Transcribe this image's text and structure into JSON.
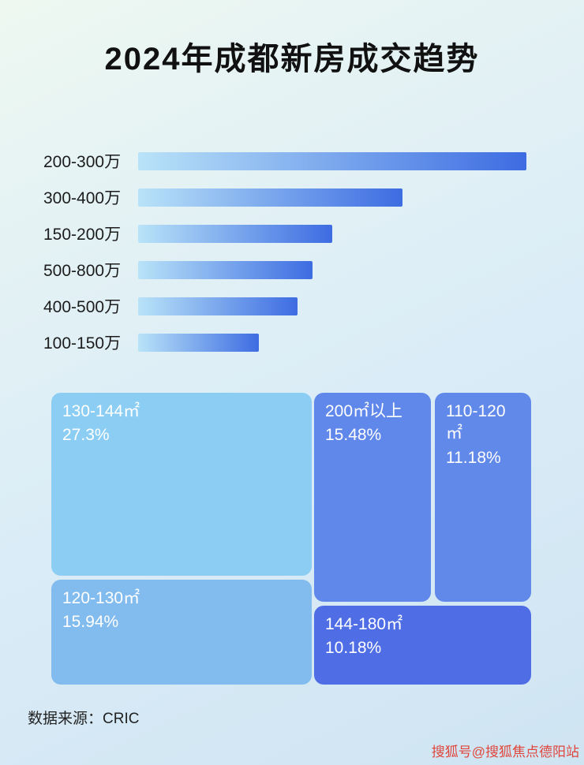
{
  "title": "2024年成都新房成交趋势",
  "footer": {
    "source_label": "数据来源：CRIC"
  },
  "watermark": "搜狐号@搜狐焦点德阳站",
  "colors": {
    "bar_gradient_start": "#b9e3f8",
    "bar_gradient_end": "#3d6ce2",
    "title_color": "#111111",
    "watermark_color": "#e0463c"
  },
  "chart_data": [
    {
      "type": "bar",
      "orientation": "horizontal",
      "title": "2024年成都新房成交趋势",
      "categories": [
        "200-300万",
        "300-400万",
        "150-200万",
        "500-800万",
        "400-500万",
        "100-150万"
      ],
      "values": [
        100,
        68,
        50,
        45,
        41,
        31
      ],
      "value_unit": "relative bar length, % of longest bar (no numeric axis shown)",
      "xlabel": "",
      "ylabel": "",
      "grid": false,
      "legend": false
    },
    {
      "type": "treemap",
      "title": "",
      "items": [
        {
          "label": "130-144㎡",
          "value": 27.3,
          "value_label": "27.3%",
          "color": "#8ccdf3"
        },
        {
          "label": "120-130㎡",
          "value": 15.94,
          "value_label": "15.94%",
          "color": "#82bbee"
        },
        {
          "label": "200㎡以上",
          "value": 15.48,
          "value_label": "15.48%",
          "color": "#5f88ea"
        },
        {
          "label": "110-120㎡",
          "value": 11.18,
          "value_label": "11.18%",
          "color": "#6189ea"
        },
        {
          "label": "144-180㎡",
          "value": 10.18,
          "value_label": "10.18%",
          "color": "#4f6ee6"
        }
      ]
    }
  ]
}
